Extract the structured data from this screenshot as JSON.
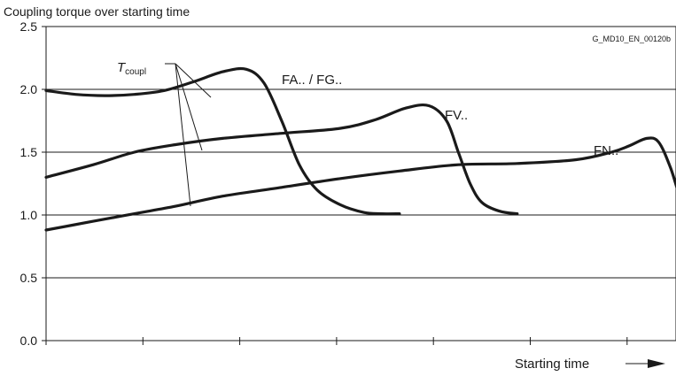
{
  "chart_data": {
    "type": "line",
    "title": "Coupling torque over starting time",
    "xlabel": "Starting time",
    "ylabel": "",
    "reference": "G_MD10_EN_00120b",
    "ylim": [
      0,
      2.5
    ],
    "yticks": [
      "0.0",
      "0.5",
      "1.0",
      "1.5",
      "2.0",
      "2.5"
    ],
    "xlim": [
      0,
      10.5
    ],
    "x_tick_count": 7,
    "grid": true,
    "annotation": {
      "symbol": "T",
      "subscript": "coupl"
    },
    "series": [
      {
        "name": "FA.. / FG..",
        "x": [
          0,
          0.5,
          1,
          1.5,
          2,
          2.5,
          3,
          3.4,
          3.7,
          4,
          4.3,
          4.6,
          5,
          5.4,
          5.7,
          6
        ],
        "y": [
          1.99,
          1.96,
          1.95,
          1.96,
          1.99,
          2.06,
          2.14,
          2.16,
          2.05,
          1.75,
          1.4,
          1.2,
          1.08,
          1.02,
          1.01,
          1.01
        ]
      },
      {
        "name": "FV..",
        "x": [
          0,
          0.8,
          1.5,
          2.2,
          3,
          4,
          5,
          5.6,
          6.1,
          6.5,
          6.8,
          7,
          7.2,
          7.4,
          7.7,
          8
        ],
        "y": [
          1.3,
          1.4,
          1.5,
          1.56,
          1.61,
          1.65,
          1.69,
          1.76,
          1.85,
          1.87,
          1.75,
          1.5,
          1.25,
          1.1,
          1.03,
          1.01
        ]
      },
      {
        "name": "FN..",
        "x": [
          0,
          0.8,
          1.5,
          2.2,
          3,
          4,
          5,
          6,
          7,
          8,
          9,
          9.6,
          9.9,
          10.2,
          10.4,
          10.6,
          10.8,
          11
        ],
        "y": [
          0.88,
          0.95,
          1.01,
          1.07,
          1.15,
          1.22,
          1.29,
          1.35,
          1.4,
          1.41,
          1.44,
          1.5,
          1.55,
          1.61,
          1.58,
          1.38,
          1.1,
          1.01
        ]
      }
    ]
  }
}
